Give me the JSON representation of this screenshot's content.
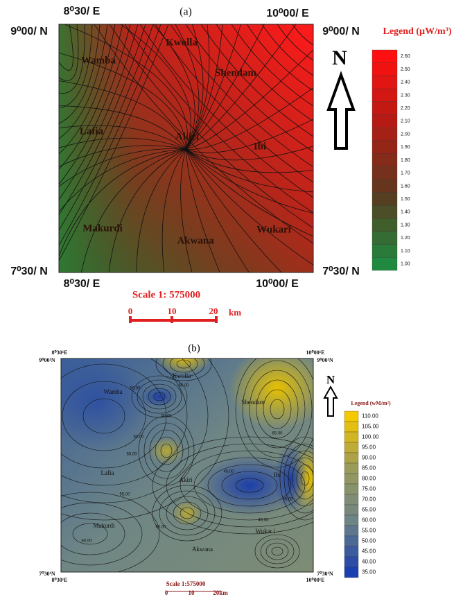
{
  "panel_a": {
    "label": "(a)",
    "corners": {
      "top_left_e": "8⁰30/ E",
      "top_right_e": "10⁰00/ E",
      "left_top_n": "9⁰00/ N",
      "right_top_n": "9⁰00/ N",
      "left_bottom_n": "7⁰30/ N",
      "right_bottom_n": "7⁰30/ N",
      "bottom_left_e": "8⁰30/ E",
      "bottom_right_e": "10⁰00/ E"
    },
    "places": [
      "Kwolla",
      "Wamba",
      "Shendam",
      "Lafia",
      "Akiri",
      "Ibi",
      "Makurdi",
      "Akwana",
      "Wukari"
    ],
    "north": "N",
    "legend": {
      "title": "Legend (µW/m³)",
      "values": [
        "2.60",
        "2.50",
        "2.40",
        "2.30",
        "2.20",
        "2.10",
        "2.00",
        "1.90",
        "1.80",
        "1.70",
        "1.60",
        "1.50",
        "1.40",
        "1.30",
        "1.20",
        "1.10",
        "1.00"
      ]
    },
    "scale": {
      "title": "Scale 1: 575000",
      "ticks": [
        "0",
        "10",
        "20"
      ],
      "unit": "km"
    }
  },
  "panel_b": {
    "label": "(b)",
    "corners": {
      "top_left_e": "8⁰30¹E",
      "top_right_e": "10⁰00¹E",
      "left_top_n": "9⁰00¹N",
      "right_top_n": "9⁰00¹N",
      "left_bottom_n": "7⁰30¹N",
      "right_bottom_n": "7⁰30¹N",
      "bottom_left_e": "8⁰30¹E",
      "bottom_right_e": "10⁰00¹E"
    },
    "places": [
      "Kwolla",
      "Wamba",
      "Shendam",
      "Lafia",
      "Akiri",
      "Ibi",
      "Makurdi",
      "Akwana",
      "Wukar i"
    ],
    "contour_labels": [
      "50.00",
      "60.00",
      "50.00",
      "55.00",
      "60.00",
      "55.00",
      "45.00",
      "55.00",
      "60.00",
      "45.00",
      "60.00",
      "65.00"
    ],
    "north": "N",
    "legend": {
      "title": "Legend (wM/m²)",
      "values": [
        "110.00",
        "105.00",
        "100.00",
        "95.00",
        "90.00",
        "85.00",
        "80.00",
        "75.00",
        "70.00",
        "65.00",
        "60.00",
        "55.00",
        "50.00",
        "45.00",
        "40.00",
        "35.00"
      ]
    },
    "scale": {
      "title": "Scale  1:575000",
      "ticks": [
        "0",
        "10",
        "20km"
      ]
    }
  }
}
